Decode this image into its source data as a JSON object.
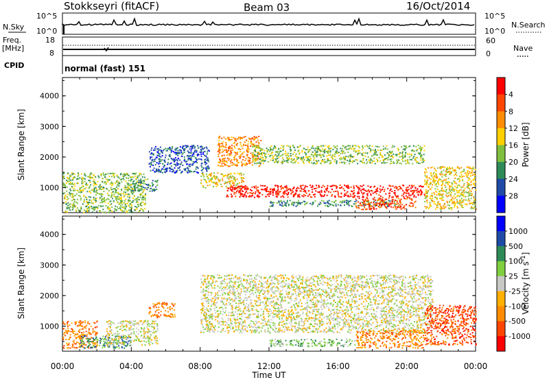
{
  "header": {
    "station": "Stokkseyri (fitACF)",
    "beam": "Beam 03",
    "date": "16/Oct/2014"
  },
  "colors": {
    "power": [
      "#0000ff",
      "#1f4aa6",
      "#2e8b57",
      "#7fbf3f",
      "#ffd000",
      "#ff8c00",
      "#ff4500",
      "#ff0000"
    ],
    "velocity": [
      "#ff0000",
      "#ff4500",
      "#ff8c00",
      "#ffb000",
      "#c8c8c4",
      "#7fcf3f",
      "#2e8b57",
      "#1f4aa6",
      "#0000ff"
    ]
  },
  "noise_panel": {
    "left_label": "N.Sky",
    "right_label": "N.Search",
    "left_ticks": [
      "10^5",
      "10^0"
    ],
    "right_ticks": [
      "10^5",
      "10^0"
    ]
  },
  "freq_panel": {
    "left_label_1": "Freq.",
    "left_label_2": "[MHz]",
    "right_label": "Nave",
    "left_ticks": [
      "18",
      "8"
    ],
    "right_ticks": [
      "60",
      "0"
    ],
    "cpid_label": "CPID",
    "mode_text": "normal (fast) 151"
  },
  "chart_data": [
    {
      "type": "heatmap",
      "name": "power",
      "ylabel": "Slant Range [km]",
      "xlabel": "Time UT",
      "x_ticks": [
        "00:00",
        "04:00",
        "08:00",
        "12:00",
        "16:00",
        "20:00",
        "00:00"
      ],
      "x_tick_hours": [
        0,
        4,
        8,
        12,
        16,
        20,
        24
      ],
      "y_ticks": [
        1000,
        2000,
        3000,
        4000
      ],
      "ylim": [
        180,
        4600
      ],
      "xlim": [
        0,
        24
      ],
      "colorbar_label": "Power [dB]",
      "colorbar_ticks": [
        "4",
        "8",
        "12",
        "16",
        "20",
        "24",
        "28"
      ],
      "regions": [
        {
          "t0": 0.0,
          "t1": 4.8,
          "r0": 200,
          "r1": 1500,
          "level": 3
        },
        {
          "t0": 4.0,
          "t1": 5.5,
          "r0": 900,
          "r1": 1300,
          "level": 2
        },
        {
          "t0": 5.0,
          "t1": 8.5,
          "r0": 1500,
          "r1": 2400,
          "level": 1
        },
        {
          "t0": 8.0,
          "t1": 10.5,
          "r0": 1000,
          "r1": 1500,
          "level": 4
        },
        {
          "t0": 9.0,
          "t1": 11.5,
          "r0": 1700,
          "r1": 2700,
          "level": 5
        },
        {
          "t0": 9.5,
          "t1": 21.0,
          "r0": 700,
          "r1": 1100,
          "level": 7
        },
        {
          "t0": 11.0,
          "t1": 21.0,
          "r0": 1800,
          "r1": 2400,
          "level": 3
        },
        {
          "t0": 12.0,
          "t1": 19.5,
          "r0": 400,
          "r1": 600,
          "level": 2
        },
        {
          "t0": 17.0,
          "t1": 20.5,
          "r0": 300,
          "r1": 700,
          "level": 6
        },
        {
          "t0": 21.0,
          "t1": 24.0,
          "r0": 300,
          "r1": 1700,
          "level": 4
        }
      ]
    },
    {
      "type": "heatmap",
      "name": "velocity",
      "ylabel": "Slant Range [km]",
      "xlabel": "Time UT",
      "x_ticks": [
        "00:00",
        "04:00",
        "08:00",
        "12:00",
        "16:00",
        "20:00",
        "00:00"
      ],
      "x_tick_hours": [
        0,
        4,
        8,
        12,
        16,
        20,
        24
      ],
      "y_ticks": [
        1000,
        2000,
        3000,
        4000
      ],
      "ylim": [
        180,
        4600
      ],
      "xlim": [
        0,
        24
      ],
      "colorbar_label": "Velocity [m s^-1]",
      "colorbar_ticks": [
        "1000",
        "500",
        "100",
        "25",
        "-25",
        "-100",
        "-500",
        "-1000"
      ],
      "regions": [
        {
          "t0": 0.0,
          "t1": 2.0,
          "r0": 300,
          "r1": 1200,
          "level": 2
        },
        {
          "t0": 1.0,
          "t1": 4.0,
          "r0": 300,
          "r1": 700,
          "level": 6
        },
        {
          "t0": 2.5,
          "t1": 5.5,
          "r0": 400,
          "r1": 1200,
          "level": 4
        },
        {
          "t0": 5.0,
          "t1": 6.5,
          "r0": 1300,
          "r1": 1800,
          "level": 2
        },
        {
          "t0": 8.0,
          "t1": 21.5,
          "r0": 800,
          "r1": 2700,
          "level": 4
        },
        {
          "t0": 12.0,
          "t1": 17.0,
          "r0": 350,
          "r1": 600,
          "level": 5
        },
        {
          "t0": 17.0,
          "t1": 21.0,
          "r0": 300,
          "r1": 900,
          "level": 2
        },
        {
          "t0": 21.0,
          "t1": 24.0,
          "r0": 400,
          "r1": 1700,
          "level": 1
        }
      ]
    }
  ]
}
